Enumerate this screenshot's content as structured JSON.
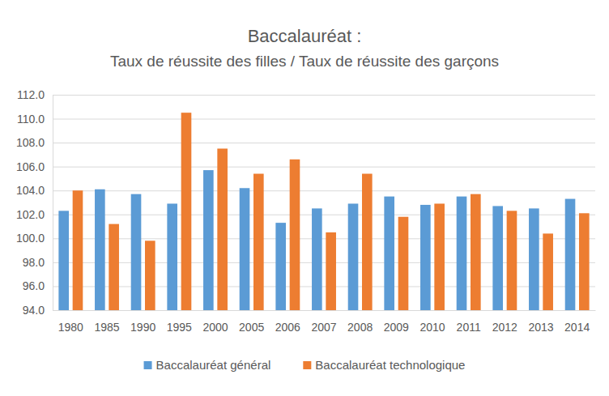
{
  "chart_data": {
    "type": "bar",
    "title": "Baccalauréat :",
    "subtitle": "Taux de réussite des filles / Taux de réussite des garçons",
    "categories": [
      "1980",
      "1985",
      "1990",
      "1995",
      "2000",
      "2005",
      "2006",
      "2007",
      "2008",
      "2009",
      "2010",
      "2011",
      "2012",
      "2013",
      "2014"
    ],
    "series": [
      {
        "name": "Baccalauréat général",
        "color": "#5b9bd5",
        "values": [
          102.3,
          104.1,
          103.7,
          102.9,
          105.7,
          104.2,
          101.3,
          102.5,
          102.9,
          103.5,
          102.8,
          103.5,
          102.7,
          102.5,
          103.3
        ]
      },
      {
        "name": "Baccalauréat technologique",
        "color": "#ed7d31",
        "values": [
          104.0,
          101.2,
          99.8,
          110.5,
          107.5,
          105.4,
          106.6,
          100.5,
          105.4,
          101.8,
          102.9,
          103.7,
          102.3,
          100.4,
          102.1
        ]
      }
    ],
    "ylim": [
      94,
      112
    ],
    "yticks": [
      {
        "value": 94,
        "label": "94.0"
      },
      {
        "value": 96,
        "label": "96.0"
      },
      {
        "value": 98,
        "label": "98.0"
      },
      {
        "value": 100,
        "label": "100.0"
      },
      {
        "value": 102,
        "label": "102.0"
      },
      {
        "value": 104,
        "label": "104.0"
      },
      {
        "value": 106,
        "label": "106.0"
      },
      {
        "value": 108,
        "label": "108.0"
      },
      {
        "value": 110,
        "label": "110.0"
      },
      {
        "value": 112,
        "label": "112.0"
      }
    ],
    "grid": true,
    "legend": "bottom"
  }
}
